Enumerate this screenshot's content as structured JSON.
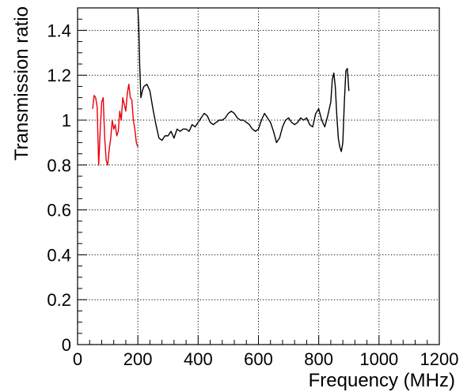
{
  "chart_data": {
    "type": "line",
    "title": "",
    "xlabel": "Frequency (MHz)",
    "ylabel": "Transmission ratio",
    "xlim": [
      0,
      1200
    ],
    "ylim": [
      0,
      1.5
    ],
    "x_ticks": [
      0,
      200,
      400,
      600,
      800,
      1000,
      1200
    ],
    "x_tick_labels": [
      "0",
      "200",
      "400",
      "600",
      "800",
      "1000",
      "1200"
    ],
    "y_ticks": [
      0,
      0.2,
      0.4,
      0.6,
      0.8,
      1,
      1.2,
      1.4
    ],
    "y_tick_labels": [
      "0",
      "0.2",
      "0.4",
      "0.6",
      "0.8",
      "1",
      "1.2",
      "1.4"
    ],
    "grid": true,
    "legend": "none",
    "series": [
      {
        "color": "#e8000b",
        "x": [
          50,
          55,
          60,
          65,
          70,
          75,
          80,
          85,
          90,
          95,
          100,
          105,
          110,
          115,
          120,
          125,
          130,
          135,
          140,
          145,
          150,
          155,
          160,
          165,
          170,
          175,
          180,
          185,
          190,
          195,
          200
        ],
        "y": [
          1.05,
          1.11,
          1.1,
          1.06,
          0.8,
          0.95,
          1.08,
          1.1,
          0.92,
          0.82,
          0.8,
          0.87,
          0.92,
          1.0,
          0.96,
          0.98,
          0.93,
          0.95,
          1.04,
          1.0,
          1.1,
          1.07,
          1.04,
          1.12,
          1.16,
          1.1,
          1.09,
          1.0,
          0.96,
          0.9,
          0.88
        ]
      },
      {
        "color": "#000000",
        "x": [
          200,
          203,
          206,
          210,
          215,
          220,
          230,
          240,
          250,
          260,
          270,
          280,
          290,
          300,
          310,
          320,
          330,
          340,
          350,
          360,
          370,
          380,
          390,
          400,
          410,
          420,
          430,
          440,
          450,
          460,
          470,
          480,
          490,
          500,
          510,
          520,
          530,
          540,
          550,
          560,
          570,
          580,
          590,
          600,
          610,
          620,
          630,
          640,
          650,
          660,
          670,
          680,
          690,
          700,
          710,
          720,
          730,
          740,
          750,
          760,
          770,
          780,
          790,
          800,
          810,
          820,
          830,
          840,
          845,
          850,
          855,
          860,
          865,
          870,
          875,
          880,
          885,
          890,
          895,
          900
        ],
        "y": [
          1.5,
          1.42,
          1.25,
          1.1,
          1.13,
          1.15,
          1.16,
          1.13,
          1.05,
          0.98,
          0.92,
          0.91,
          0.93,
          0.93,
          0.95,
          0.92,
          0.96,
          0.95,
          0.96,
          0.96,
          0.95,
          0.98,
          0.97,
          0.99,
          1.01,
          1.03,
          1.02,
          0.99,
          0.98,
          0.99,
          1.0,
          1.0,
          1.01,
          1.03,
          1.04,
          1.03,
          1.01,
          1.0,
          1.0,
          0.99,
          0.98,
          0.96,
          0.95,
          0.96,
          1.0,
          1.03,
          1.01,
          0.99,
          0.95,
          0.9,
          0.92,
          0.97,
          1.0,
          1.01,
          0.99,
          0.98,
          0.99,
          1.01,
          1.0,
          1.01,
          0.98,
          0.97,
          1.03,
          1.05,
          1.0,
          0.97,
          1.02,
          1.08,
          1.18,
          1.21,
          1.15,
          1.02,
          0.92,
          0.88,
          0.86,
          0.9,
          1.08,
          1.22,
          1.23,
          1.13
        ]
      }
    ]
  }
}
